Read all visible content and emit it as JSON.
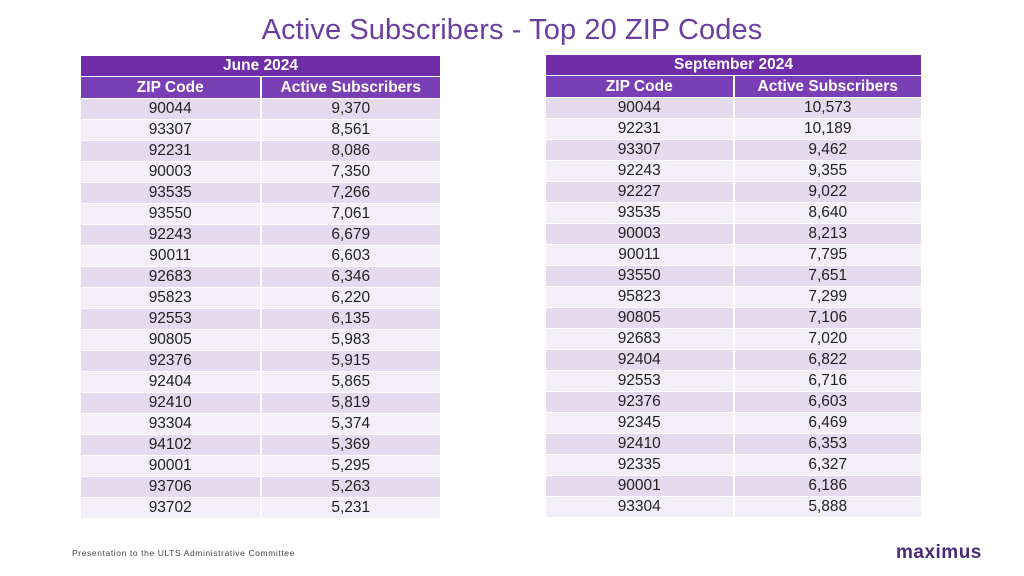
{
  "title": "Active Subscribers - Top 20 ZIP Codes",
  "columns": {
    "zip": "ZIP Code",
    "subscribers": "Active Subscribers"
  },
  "tables": [
    {
      "period": "June 2024",
      "rows": [
        [
          "90044",
          "9,370"
        ],
        [
          "93307",
          "8,561"
        ],
        [
          "92231",
          "8,086"
        ],
        [
          "90003",
          "7,350"
        ],
        [
          "93535",
          "7,266"
        ],
        [
          "93550",
          "7,061"
        ],
        [
          "92243",
          "6,679"
        ],
        [
          "90011",
          "6,603"
        ],
        [
          "92683",
          "6,346"
        ],
        [
          "95823",
          "6,220"
        ],
        [
          "92553",
          "6,135"
        ],
        [
          "90805",
          "5,983"
        ],
        [
          "92376",
          "5,915"
        ],
        [
          "92404",
          "5,865"
        ],
        [
          "92410",
          "5,819"
        ],
        [
          "93304",
          "5,374"
        ],
        [
          "94102",
          "5,369"
        ],
        [
          "90001",
          "5,295"
        ],
        [
          "93706",
          "5,263"
        ],
        [
          "93702",
          "5,231"
        ]
      ]
    },
    {
      "period": "September 2024",
      "rows": [
        [
          "90044",
          "10,573"
        ],
        [
          "92231",
          "10,189"
        ],
        [
          "93307",
          "9,462"
        ],
        [
          "92243",
          "9,355"
        ],
        [
          "92227",
          "9,022"
        ],
        [
          "93535",
          "8,640"
        ],
        [
          "90003",
          "8,213"
        ],
        [
          "90011",
          "7,795"
        ],
        [
          "93550",
          "7,651"
        ],
        [
          "95823",
          "7,299"
        ],
        [
          "90805",
          "7,106"
        ],
        [
          "92683",
          "7,020"
        ],
        [
          "92404",
          "6,822"
        ],
        [
          "92553",
          "6,716"
        ],
        [
          "92376",
          "6,603"
        ],
        [
          "92345",
          "6,469"
        ],
        [
          "92410",
          "6,353"
        ],
        [
          "92335",
          "6,327"
        ],
        [
          "90001",
          "6,186"
        ],
        [
          "93304",
          "5,888"
        ]
      ]
    }
  ],
  "footer": "Presentation to the ULTS Administrative Committee",
  "logo": "maximus",
  "colors": {
    "title": "#6b3fa0",
    "header": "#6f2da8",
    "row_odd": "#e4dcee",
    "row_even": "#f3eff8"
  }
}
